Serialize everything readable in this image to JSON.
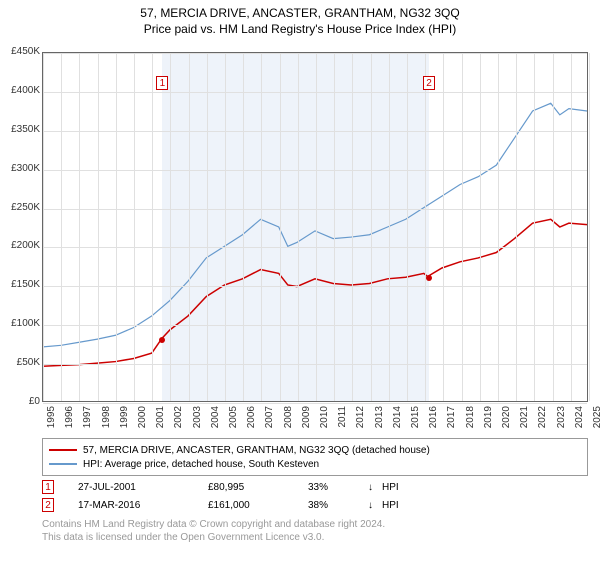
{
  "title": "57, MERCIA DRIVE, ANCASTER, GRANTHAM, NG32 3QQ",
  "subtitle": "Price paid vs. HM Land Registry's House Price Index (HPI)",
  "chart": {
    "type": "line",
    "background_color": "#ffffff",
    "grid_color": "#e0e0e0",
    "border_color": "#666666",
    "xlim": [
      1995,
      2025
    ],
    "ylim": [
      0,
      450000
    ],
    "ytick_step": 50000,
    "y_labels": [
      "£0",
      "£50K",
      "£100K",
      "£150K",
      "£200K",
      "£250K",
      "£300K",
      "£350K",
      "£400K",
      "£450K"
    ],
    "x_labels": [
      "1995",
      "1996",
      "1997",
      "1998",
      "1999",
      "2000",
      "2001",
      "2002",
      "2003",
      "2004",
      "2005",
      "2006",
      "2007",
      "2008",
      "2009",
      "2010",
      "2011",
      "2012",
      "2013",
      "2014",
      "2015",
      "2016",
      "2017",
      "2018",
      "2019",
      "2020",
      "2021",
      "2022",
      "2023",
      "2024",
      "2025"
    ],
    "shade_ranges": [
      [
        2001.56,
        2016.21
      ]
    ],
    "shade_color": "#eef3fa",
    "series": [
      {
        "name": "price_paid",
        "color": "#cc0000",
        "width": 1.5,
        "label": "57, MERCIA DRIVE, ANCASTER, GRANTHAM, NG32 3QQ (detached house)",
        "points": [
          [
            1995,
            45000
          ],
          [
            1996,
            46000
          ],
          [
            1997,
            47000
          ],
          [
            1998,
            49000
          ],
          [
            1999,
            51000
          ],
          [
            2000,
            55000
          ],
          [
            2001,
            62000
          ],
          [
            2001.56,
            80995
          ],
          [
            2002,
            92000
          ],
          [
            2003,
            110000
          ],
          [
            2004,
            135000
          ],
          [
            2005,
            150000
          ],
          [
            2006,
            158000
          ],
          [
            2007,
            170000
          ],
          [
            2008,
            165000
          ],
          [
            2008.5,
            150000
          ],
          [
            2009,
            148000
          ],
          [
            2010,
            158000
          ],
          [
            2011,
            152000
          ],
          [
            2012,
            150000
          ],
          [
            2013,
            152000
          ],
          [
            2014,
            158000
          ],
          [
            2015,
            160000
          ],
          [
            2016,
            165000
          ],
          [
            2016.21,
            161000
          ],
          [
            2017,
            172000
          ],
          [
            2018,
            180000
          ],
          [
            2019,
            185000
          ],
          [
            2020,
            192000
          ],
          [
            2021,
            210000
          ],
          [
            2022,
            230000
          ],
          [
            2023,
            235000
          ],
          [
            2023.5,
            225000
          ],
          [
            2024,
            230000
          ],
          [
            2025,
            228000
          ]
        ],
        "markers": [
          {
            "idx": "1",
            "x": 2001.56,
            "y": 80995,
            "box_y": 420000
          },
          {
            "idx": "2",
            "x": 2016.21,
            "y": 161000,
            "box_y": 420000
          }
        ]
      },
      {
        "name": "hpi",
        "color": "#6699cc",
        "width": 1.2,
        "label": "HPI: Average price, detached house, South Kesteven",
        "points": [
          [
            1995,
            70000
          ],
          [
            1996,
            72000
          ],
          [
            1997,
            76000
          ],
          [
            1998,
            80000
          ],
          [
            1999,
            85000
          ],
          [
            2000,
            95000
          ],
          [
            2001,
            110000
          ],
          [
            2002,
            130000
          ],
          [
            2003,
            155000
          ],
          [
            2004,
            185000
          ],
          [
            2005,
            200000
          ],
          [
            2006,
            215000
          ],
          [
            2007,
            235000
          ],
          [
            2008,
            225000
          ],
          [
            2008.5,
            200000
          ],
          [
            2009,
            205000
          ],
          [
            2010,
            220000
          ],
          [
            2011,
            210000
          ],
          [
            2012,
            212000
          ],
          [
            2013,
            215000
          ],
          [
            2014,
            225000
          ],
          [
            2015,
            235000
          ],
          [
            2016,
            250000
          ],
          [
            2017,
            265000
          ],
          [
            2018,
            280000
          ],
          [
            2019,
            290000
          ],
          [
            2020,
            305000
          ],
          [
            2021,
            340000
          ],
          [
            2022,
            375000
          ],
          [
            2023,
            385000
          ],
          [
            2023.5,
            370000
          ],
          [
            2024,
            378000
          ],
          [
            2025,
            375000
          ]
        ]
      }
    ]
  },
  "legend": {
    "border_color": "#999999",
    "items": [
      {
        "color": "#cc0000",
        "label": "57, MERCIA DRIVE, ANCASTER, GRANTHAM, NG32 3QQ (detached house)"
      },
      {
        "color": "#6699cc",
        "label": "HPI: Average price, detached house, South Kesteven"
      }
    ]
  },
  "transactions": [
    {
      "idx": "1",
      "date": "27-JUL-2001",
      "price": "£80,995",
      "pct": "33%",
      "arrow": "↓",
      "vs": "HPI"
    },
    {
      "idx": "2",
      "date": "17-MAR-2016",
      "price": "£161,000",
      "pct": "38%",
      "arrow": "↓",
      "vs": "HPI"
    }
  ],
  "footer": {
    "line1": "Contains HM Land Registry data © Crown copyright and database right 2024.",
    "line2": "This data is licensed under the Open Government Licence v3.0."
  },
  "colors": {
    "marker_border": "#cc0000",
    "footer_text": "#999999"
  }
}
